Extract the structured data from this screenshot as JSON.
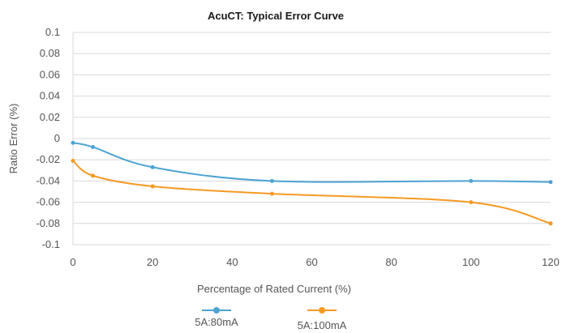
{
  "chart_data": {
    "type": "line",
    "title": "AcuCT: Typical Error Curve",
    "xlabel": "Percentage of Rated Current (%)",
    "ylabel": "Ratio Error (%)",
    "xlim": [
      0,
      120
    ],
    "ylim": [
      -0.1,
      0.1
    ],
    "x_ticks": [
      "0",
      "20",
      "40",
      "60",
      "80",
      "100",
      "120"
    ],
    "y_ticks": [
      "0.1",
      "0.08",
      "0.06",
      "0.04",
      "0.02",
      "0",
      "-0.02",
      "-0.04",
      "-0.06",
      "-0.08",
      "-0.1"
    ],
    "grid": "horizontal",
    "legend": "bottom",
    "series": [
      {
        "name": "5A:80mA",
        "color": "#4ea3d2",
        "x": [
          0,
          5,
          20,
          50,
          100,
          120
        ],
        "y": [
          -0.004,
          -0.008,
          -0.027,
          -0.04,
          -0.04,
          -0.041
        ]
      },
      {
        "name": "5A:100mA",
        "color": "#f59a23",
        "x": [
          0,
          5,
          20,
          50,
          100,
          120
        ],
        "y": [
          -0.021,
          -0.035,
          -0.045,
          -0.052,
          -0.06,
          -0.08
        ]
      }
    ]
  }
}
